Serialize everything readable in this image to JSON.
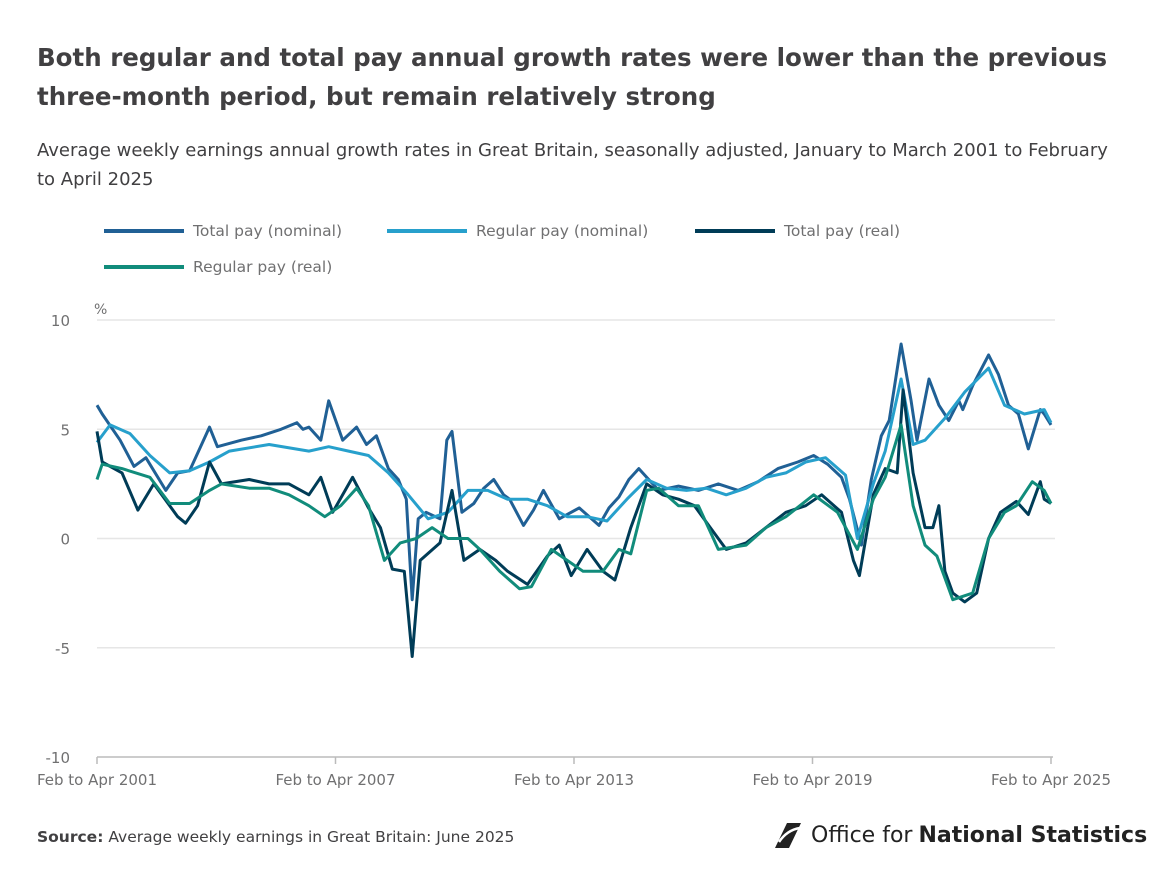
{
  "title": "Both regular and total pay annual growth rates were lower than the previous three-month period, but remain relatively strong",
  "subtitle": "Average weekly earnings annual growth rates in Great Britain, seasonally adjusted, January to March 2001 to February to April 2025",
  "source_label": "Source:",
  "source_text": "Average weekly earnings in Great Britain: June 2025",
  "logo": {
    "prefix": "Office for",
    "name": "National Statistics"
  },
  "chart_data": {
    "type": "line",
    "title": "Both regular and total pay annual growth rates were lower than the previous three-month period, but remain relatively strong",
    "xlabel": "",
    "ylabel": "%",
    "ylim": [
      -10,
      10
    ],
    "yticks": [
      10,
      5,
      0,
      -5,
      -10
    ],
    "xlim": [
      2001.17,
      2025.17
    ],
    "xticks": [
      {
        "x": 2001.17,
        "label": "Feb to Apr 2001"
      },
      {
        "x": 2007.17,
        "label": "Feb to Apr 2007"
      },
      {
        "x": 2013.17,
        "label": "Feb to Apr 2013"
      },
      {
        "x": 2019.17,
        "label": "Feb to Apr 2019"
      },
      {
        "x": 2025.17,
        "label": "Feb to Apr 2025"
      }
    ],
    "grid": true,
    "legend_position": "top-left",
    "series": [
      {
        "name": "Total pay (nominal)",
        "color": "#206095",
        "x": [
          2001.17,
          2001.3,
          2001.75,
          2002.1,
          2002.4,
          2002.9,
          2003.2,
          2003.5,
          2003.75,
          2004.0,
          2004.2,
          2004.8,
          2005.3,
          2005.8,
          2006.2,
          2006.35,
          2006.5,
          2006.8,
          2007.0,
          2007.35,
          2007.7,
          2007.95,
          2008.2,
          2008.5,
          2008.75,
          2008.95,
          2009.1,
          2009.25,
          2009.45,
          2009.8,
          2009.97,
          2010.1,
          2010.25,
          2010.35,
          2010.65,
          2010.9,
          2011.15,
          2011.4,
          2011.55,
          2011.9,
          2012.15,
          2012.4,
          2012.8,
          2013.3,
          2013.8,
          2014.05,
          2014.3,
          2014.55,
          2014.8,
          2015.05,
          2015.3,
          2015.8,
          2016.3,
          2016.8,
          2017.3,
          2017.8,
          2018.3,
          2018.8,
          2019.2,
          2019.55,
          2019.9,
          2020.1,
          2020.4,
          2020.65,
          2020.9,
          2021.1,
          2021.4,
          2021.65,
          2021.8,
          2022.1,
          2022.35,
          2022.6,
          2022.85,
          2022.95,
          2023.2,
          2023.6,
          2023.85,
          2024.1,
          2024.35,
          2024.6,
          2024.9,
          2025.0,
          2025.17
        ],
        "values": [
          6.1,
          5.7,
          4.5,
          3.3,
          3.7,
          2.2,
          3.0,
          3.1,
          4.1,
          5.1,
          4.2,
          4.5,
          4.7,
          5.0,
          5.3,
          5.0,
          5.1,
          4.5,
          6.3,
          4.5,
          5.1,
          4.3,
          4.7,
          3.2,
          2.7,
          1.8,
          -2.8,
          0.9,
          1.2,
          0.9,
          4.5,
          4.9,
          2.7,
          1.2,
          1.6,
          2.3,
          2.7,
          2.0,
          1.8,
          0.6,
          1.3,
          2.2,
          0.9,
          1.4,
          0.6,
          1.4,
          1.9,
          2.7,
          3.2,
          2.7,
          2.2,
          2.4,
          2.2,
          2.5,
          2.2,
          2.6,
          3.2,
          3.5,
          3.8,
          3.4,
          2.8,
          1.8,
          -0.3,
          2.7,
          4.7,
          5.4,
          8.9,
          6.3,
          4.5,
          7.3,
          6.1,
          5.4,
          6.3,
          5.9,
          7.0,
          8.4,
          7.5,
          6.1,
          5.7,
          4.1,
          5.9,
          5.7,
          5.2
        ]
      },
      {
        "name": "Regular pay (nominal)",
        "color": "#27a0cc",
        "x": [
          2001.17,
          2001.5,
          2002.0,
          2002.5,
          2003.0,
          2003.5,
          2004.0,
          2004.5,
          2005.5,
          2006.5,
          2007.0,
          2007.5,
          2008.0,
          2008.5,
          2009.0,
          2009.5,
          2010.0,
          2010.5,
          2011.0,
          2011.5,
          2012.0,
          2012.5,
          2013.0,
          2013.5,
          2014.0,
          2014.5,
          2015.0,
          2015.5,
          2016.0,
          2016.5,
          2017.0,
          2017.5,
          2018.0,
          2018.5,
          2019.0,
          2019.5,
          2020.0,
          2020.3,
          2020.7,
          2021.0,
          2021.4,
          2021.7,
          2022.0,
          2022.5,
          2023.0,
          2023.6,
          2024.0,
          2024.5,
          2025.0,
          2025.17
        ],
        "values": [
          4.4,
          5.2,
          4.8,
          3.8,
          3.0,
          3.1,
          3.5,
          4.0,
          4.3,
          4.0,
          4.2,
          4.0,
          3.8,
          3.0,
          2.0,
          0.9,
          1.2,
          2.2,
          2.2,
          1.8,
          1.8,
          1.5,
          1.0,
          1.0,
          0.8,
          1.8,
          2.7,
          2.3,
          2.2,
          2.3,
          2.0,
          2.3,
          2.8,
          3.0,
          3.5,
          3.7,
          2.9,
          0.0,
          2.5,
          4.0,
          7.3,
          4.3,
          4.5,
          5.5,
          6.7,
          7.8,
          6.1,
          5.7,
          5.9,
          5.3
        ]
      },
      {
        "name": "Total pay (real)",
        "color": "#003c57",
        "x": [
          2001.17,
          2001.3,
          2001.8,
          2002.2,
          2002.6,
          2003.2,
          2003.4,
          2003.7,
          2004.0,
          2004.3,
          2005.0,
          2005.5,
          2006.0,
          2006.5,
          2006.8,
          2007.1,
          2007.6,
          2008.0,
          2008.3,
          2008.6,
          2008.9,
          2009.1,
          2009.3,
          2009.8,
          2010.1,
          2010.4,
          2010.8,
          2011.2,
          2011.5,
          2012.0,
          2012.5,
          2012.8,
          2013.1,
          2013.5,
          2013.9,
          2014.2,
          2014.6,
          2015.0,
          2015.4,
          2015.8,
          2016.2,
          2016.6,
          2017.0,
          2017.5,
          2018.0,
          2018.5,
          2019.0,
          2019.4,
          2019.9,
          2020.2,
          2020.35,
          2020.7,
          2021.0,
          2021.3,
          2021.45,
          2021.7,
          2022.0,
          2022.2,
          2022.35,
          2022.5,
          2022.7,
          2023.0,
          2023.3,
          2023.6,
          2023.9,
          2024.3,
          2024.6,
          2024.9,
          2025.0,
          2025.17
        ],
        "values": [
          4.9,
          3.5,
          3.0,
          1.3,
          2.5,
          1.0,
          0.7,
          1.5,
          3.5,
          2.5,
          2.7,
          2.5,
          2.5,
          2.0,
          2.8,
          1.2,
          2.8,
          1.4,
          0.5,
          -1.4,
          -1.5,
          -5.4,
          -1.0,
          -0.2,
          2.2,
          -1.0,
          -0.5,
          -1.0,
          -1.5,
          -2.1,
          -0.8,
          -0.3,
          -1.7,
          -0.5,
          -1.5,
          -1.9,
          0.5,
          2.5,
          2.0,
          1.8,
          1.5,
          0.5,
          -0.5,
          -0.2,
          0.5,
          1.2,
          1.5,
          2.0,
          1.2,
          -1.0,
          -1.7,
          2.0,
          3.2,
          3.0,
          6.8,
          3.0,
          0.5,
          0.5,
          1.5,
          -1.5,
          -2.5,
          -2.9,
          -2.5,
          0.0,
          1.2,
          1.7,
          1.1,
          2.6,
          1.8,
          1.6
        ]
      },
      {
        "name": "Regular pay (real)",
        "color": "#118c7b",
        "x": [
          2001.17,
          2001.3,
          2001.8,
          2002.5,
          2003.0,
          2003.5,
          2004.0,
          2004.3,
          2005.0,
          2005.5,
          2006.0,
          2006.5,
          2006.9,
          2007.3,
          2007.7,
          2008.0,
          2008.4,
          2008.8,
          2009.2,
          2009.6,
          2010.0,
          2010.5,
          2010.8,
          2011.3,
          2011.8,
          2012.1,
          2012.6,
          2013.0,
          2013.4,
          2013.9,
          2014.3,
          2014.6,
          2015.0,
          2015.3,
          2015.8,
          2016.3,
          2016.8,
          2017.5,
          2018.0,
          2018.5,
          2019.2,
          2019.8,
          2020.3,
          2020.7,
          2021.0,
          2021.4,
          2021.7,
          2022.0,
          2022.3,
          2022.7,
          2023.2,
          2023.6,
          2024.0,
          2024.3,
          2024.7,
          2025.0,
          2025.17
        ],
        "values": [
          2.7,
          3.4,
          3.2,
          2.8,
          1.6,
          1.6,
          2.2,
          2.5,
          2.3,
          2.3,
          2.0,
          1.5,
          1.0,
          1.5,
          2.3,
          1.5,
          -1.0,
          -0.2,
          0.0,
          0.5,
          0.0,
          0.0,
          -0.5,
          -1.5,
          -2.3,
          -2.2,
          -0.5,
          -1.0,
          -1.5,
          -1.5,
          -0.5,
          -0.7,
          2.2,
          2.3,
          1.5,
          1.5,
          -0.5,
          -0.3,
          0.5,
          1.0,
          2.0,
          1.2,
          -0.5,
          1.8,
          2.8,
          5.2,
          1.5,
          -0.3,
          -0.8,
          -2.8,
          -2.5,
          0.0,
          1.2,
          1.5,
          2.6,
          2.2,
          1.6
        ]
      }
    ]
  }
}
